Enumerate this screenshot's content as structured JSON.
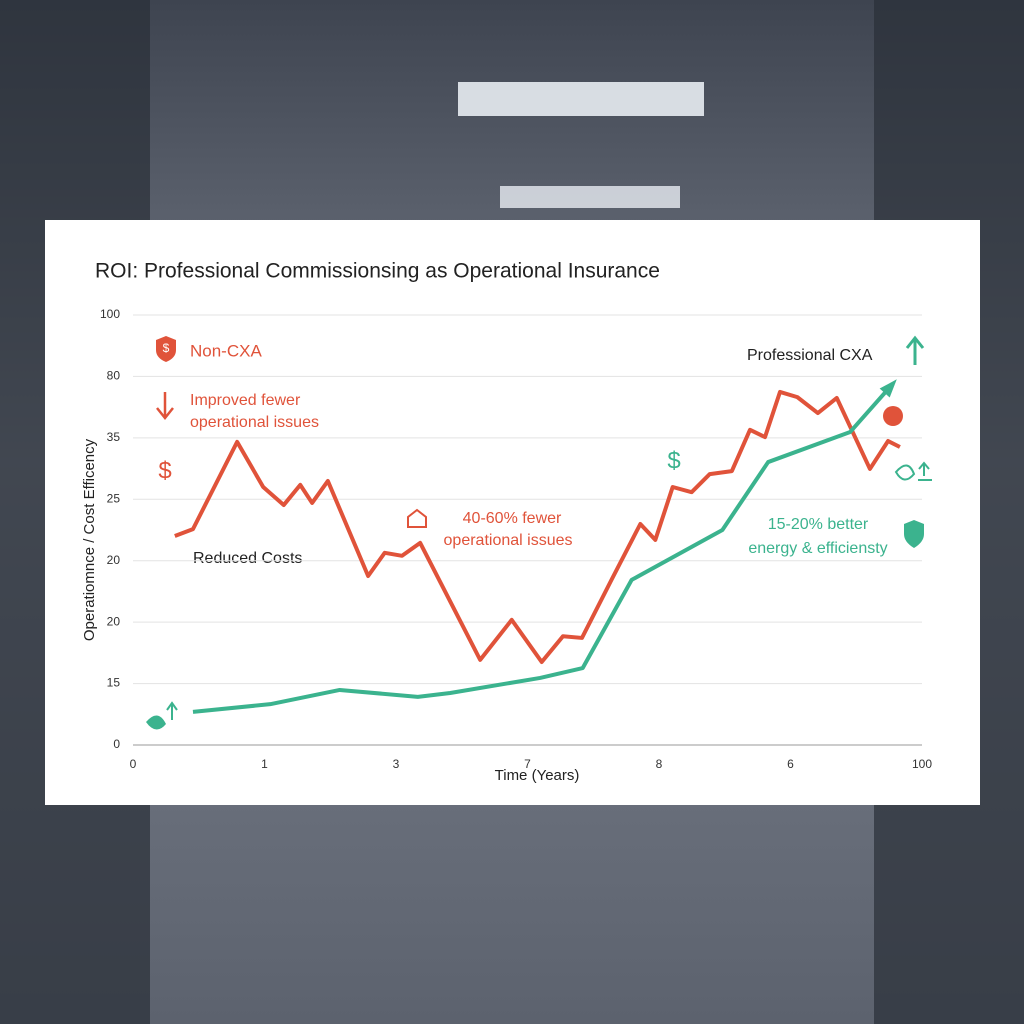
{
  "chart_data": {
    "type": "line",
    "title": "ROI: Professional Commissionsing as Operational Insurance",
    "x_label": "Time (Years)",
    "y_label": "Operatiomnce / Cost Efficency",
    "xlim": [
      0,
      100
    ],
    "ylim": [
      0,
      100
    ],
    "xtick_labels": [
      "0",
      "1",
      "3",
      "7",
      "8",
      "6",
      "100"
    ],
    "ytick_labels": [
      "0",
      "15",
      "20",
      "20",
      "25",
      "35",
      "80",
      "100"
    ],
    "grid": true,
    "series": [
      {
        "name": "Non-CXA",
        "color": "#e0533a",
        "x": [
          5.3,
          7.6,
          13.2,
          16.5,
          19.1,
          21.2,
          22.7,
          24.7,
          29.8,
          31.9,
          34.1,
          36.4,
          44.0,
          48.0,
          51.8,
          54.5,
          56.9,
          60.7,
          64.3,
          66.2,
          68.4,
          70.8,
          73.1,
          75.9,
          78.2,
          80.1,
          82.0,
          84.2,
          86.8,
          89.2,
          93.4,
          95.7,
          97.2
        ],
        "values": [
          48.6,
          50.2,
          70.5,
          60.0,
          55.8,
          60.5,
          56.3,
          61.4,
          39.3,
          44.7,
          44.0,
          47.0,
          19.8,
          29.1,
          19.3,
          25.3,
          24.9,
          38.6,
          51.4,
          47.7,
          60.0,
          58.8,
          63.0,
          63.7,
          73.3,
          71.6,
          82.1,
          80.9,
          77.2,
          80.7,
          64.2,
          70.7,
          69.3
        ]
      },
      {
        "name": "Professional CXA",
        "color": "#3bb38e",
        "x": [
          7.6,
          17.4,
          26.2,
          36.1,
          40.2,
          51.6,
          57.0,
          63.2,
          74.7,
          80.5,
          90.9,
          96.3
        ],
        "values": [
          7.7,
          9.5,
          12.8,
          11.2,
          12.1,
          15.6,
          17.9,
          38.4,
          50.0,
          65.8,
          72.8,
          84.0
        ]
      }
    ],
    "annotations": [
      "Improved fewer",
      "operational issues",
      "$",
      "Reduced Costs",
      "40-60% fewer",
      "operational issues",
      "$",
      "15-20% better",
      "energy & efficiensty"
    ]
  }
}
